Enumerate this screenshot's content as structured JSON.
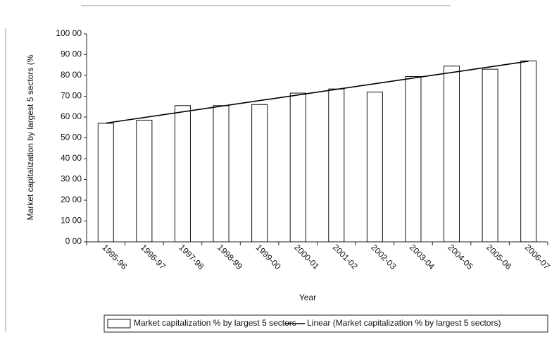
{
  "chart_data": {
    "type": "bar",
    "categories": [
      "1995-96",
      "1996-97",
      "1997-98",
      "1998-99",
      "1999-00",
      "2000-01",
      "2001-02",
      "2002-03",
      "2003-04",
      "2004-05",
      "2005-06",
      "2006-07"
    ],
    "series": [
      {
        "name": "Market capitalization % by largest 5 sectors",
        "color": "#ffffff",
        "values": [
          57,
          58.5,
          65.5,
          65.5,
          66,
          71.5,
          73.5,
          72,
          79.5,
          84.5,
          83,
          87
        ]
      }
    ],
    "trendline": {
      "name": "Linear (Market capitalization % by largest 5 sectors)",
      "kind": "linear",
      "color": "#000000"
    },
    "x_label": "Year",
    "y_label": "Market capitalization by largest 5 sectors (%",
    "ylim": [
      0,
      100
    ],
    "yticks": [
      {
        "value": 0,
        "label": "0 00"
      },
      {
        "value": 10,
        "label": "10 00"
      },
      {
        "value": 20,
        "label": "20 00"
      },
      {
        "value": 30,
        "label": "30 00"
      },
      {
        "value": 40,
        "label": "40 00"
      },
      {
        "value": 50,
        "label": "50 00"
      },
      {
        "value": 60,
        "label": "60 00"
      },
      {
        "value": 70,
        "label": "70 00"
      },
      {
        "value": 80,
        "label": "80 00"
      },
      {
        "value": 90,
        "label": "90 00"
      },
      {
        "value": 100,
        "label": "100 00"
      }
    ],
    "grid": false
  }
}
